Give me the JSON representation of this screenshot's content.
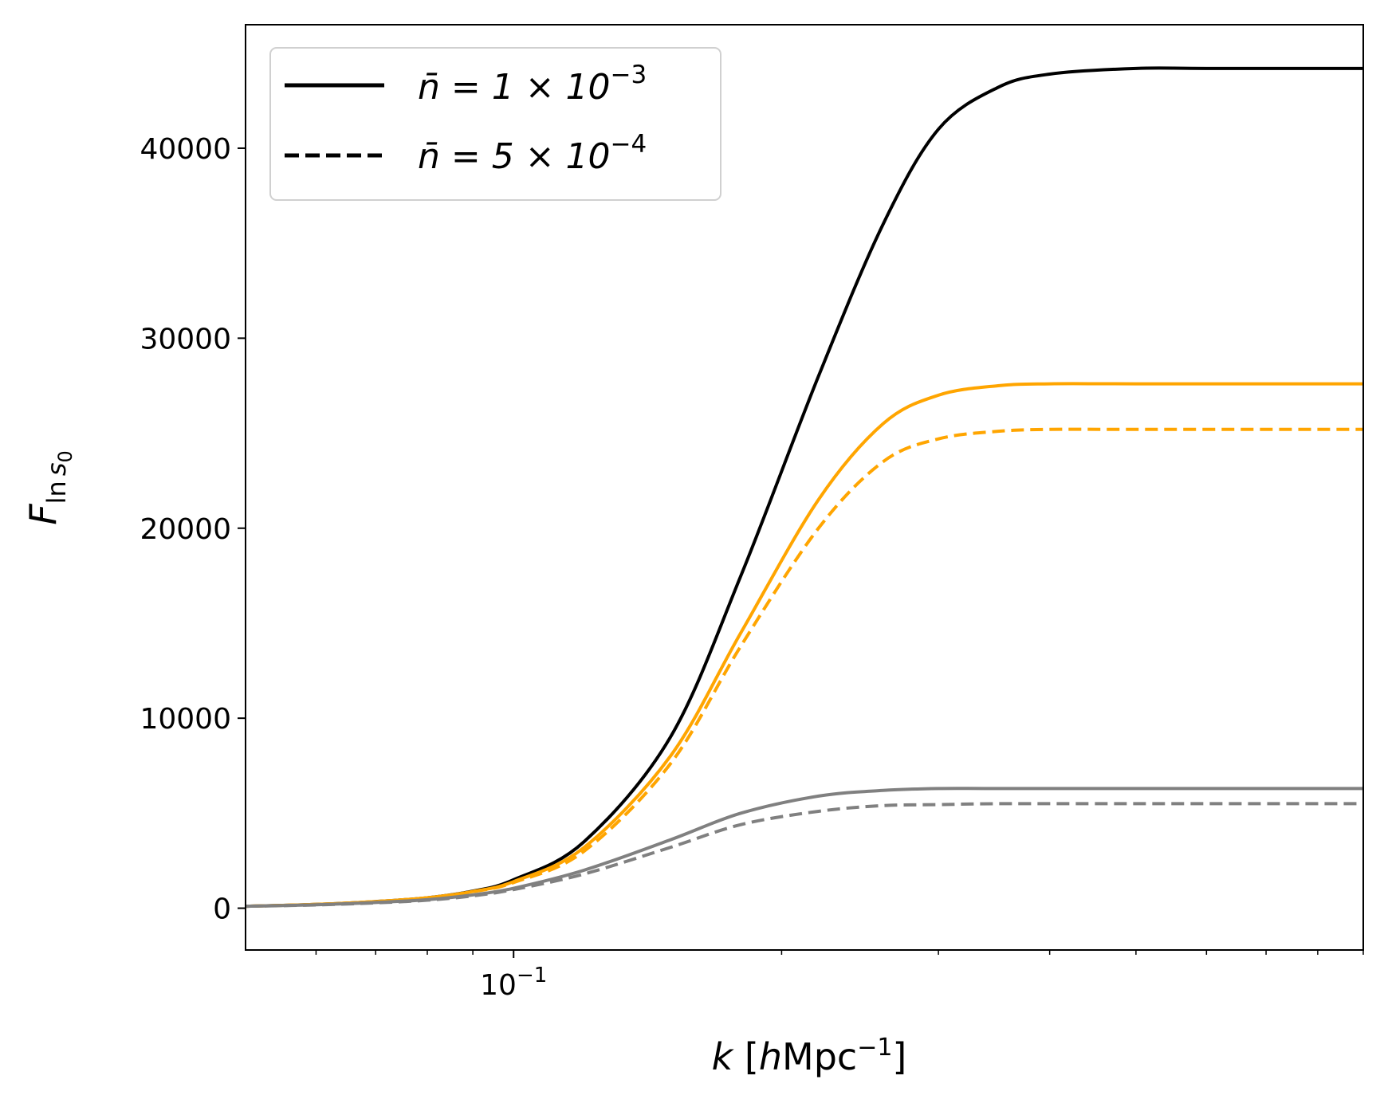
{
  "chart_data": {
    "type": "line",
    "xscale": "log",
    "xlim": [
      0.05,
      0.9
    ],
    "ylim": [
      -2200,
      46500
    ],
    "yticks": [
      0,
      10000,
      20000,
      30000,
      40000
    ],
    "ytick_labels": [
      "0",
      "10000",
      "20000",
      "30000",
      "40000"
    ],
    "xtick_major": [
      0.1
    ],
    "xtick_major_labels": [
      {
        "base": "10",
        "exp": "−1"
      }
    ],
    "xtick_minor": [
      0.06,
      0.07,
      0.08,
      0.09,
      0.2,
      0.3,
      0.4,
      0.5,
      0.6,
      0.7,
      0.8,
      0.9
    ],
    "xlabel": {
      "var": "k",
      "open": " [",
      "h": "h",
      "unit": "Mpc",
      "exp": "−1",
      "close": "]"
    },
    "ylabel": {
      "var": "F",
      "sub_ln": "ln",
      "sub_s": "s",
      "sub_0": "0"
    },
    "legend": {
      "placement": "top-left",
      "entries": [
        {
          "style": "solid",
          "prefix": "n̄ = 1 × 10",
          "exp": "−3"
        },
        {
          "style": "dashed",
          "prefix": "n̄ = 5 × 10",
          "exp": "−4"
        }
      ]
    },
    "series": [
      {
        "name": "black-solid",
        "color": "#000000",
        "dash": "solid",
        "x": [
          0.05,
          0.06,
          0.07,
          0.08,
          0.09,
          0.1,
          0.12,
          0.15,
          0.18,
          0.22,
          0.26,
          0.3,
          0.35,
          0.4,
          0.5,
          0.6,
          0.9
        ],
        "y": [
          100,
          200,
          350,
          550,
          900,
          1500,
          3500,
          9000,
          17500,
          28000,
          36000,
          41000,
          43200,
          43900,
          44200,
          44200,
          44200
        ]
      },
      {
        "name": "orange-solid",
        "color": "#FFA500",
        "dash": "solid",
        "x": [
          0.05,
          0.06,
          0.07,
          0.08,
          0.09,
          0.1,
          0.12,
          0.15,
          0.18,
          0.22,
          0.26,
          0.3,
          0.35,
          0.4,
          0.5,
          0.9
        ],
        "y": [
          100,
          200,
          350,
          550,
          880,
          1400,
          3200,
          8000,
          14500,
          21500,
          25500,
          27000,
          27500,
          27600,
          27600,
          27600
        ]
      },
      {
        "name": "orange-dashed",
        "color": "#FFA500",
        "dash": "dashed",
        "x": [
          0.05,
          0.06,
          0.07,
          0.08,
          0.09,
          0.1,
          0.12,
          0.15,
          0.18,
          0.22,
          0.26,
          0.3,
          0.35,
          0.4,
          0.5,
          0.9
        ],
        "y": [
          100,
          200,
          350,
          550,
          870,
          1350,
          3000,
          7600,
          13800,
          20000,
          23500,
          24700,
          25100,
          25200,
          25200,
          25200
        ]
      },
      {
        "name": "gray-solid",
        "color": "#808080",
        "dash": "solid",
        "x": [
          0.05,
          0.06,
          0.07,
          0.08,
          0.09,
          0.1,
          0.12,
          0.15,
          0.18,
          0.22,
          0.26,
          0.3,
          0.35,
          0.5,
          0.9
        ],
        "y": [
          100,
          180,
          300,
          450,
          700,
          1050,
          2000,
          3600,
          5000,
          5900,
          6200,
          6300,
          6300,
          6300,
          6300
        ]
      },
      {
        "name": "gray-dashed",
        "color": "#808080",
        "dash": "dashed",
        "x": [
          0.05,
          0.06,
          0.07,
          0.08,
          0.09,
          0.1,
          0.12,
          0.15,
          0.18,
          0.22,
          0.26,
          0.3,
          0.35,
          0.5,
          0.9
        ],
        "y": [
          100,
          170,
          280,
          420,
          650,
          980,
          1800,
          3200,
          4400,
          5100,
          5400,
          5450,
          5500,
          5500,
          5500
        ]
      }
    ]
  }
}
